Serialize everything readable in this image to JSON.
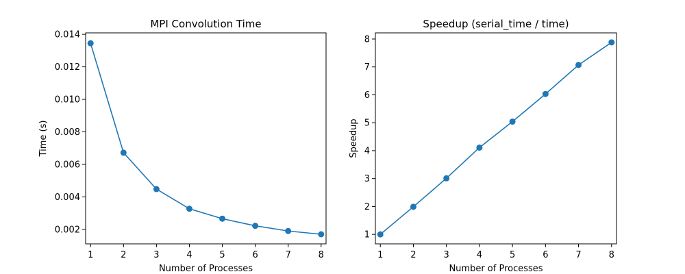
{
  "chart_data": [
    {
      "type": "line",
      "title": "MPI Convolution Time",
      "xlabel": "Number of Processes",
      "ylabel": "Time (s)",
      "x": [
        1,
        2,
        3,
        4,
        5,
        6,
        7,
        8
      ],
      "series": [
        {
          "values": [
            0.01345,
            0.00672,
            0.00448,
            0.00327,
            0.00266,
            0.00222,
            0.0019,
            0.0017
          ]
        }
      ],
      "xlim": [
        0.85,
        8.15
      ],
      "ylim": [
        0.00111,
        0.01409
      ],
      "xticks": [
        1,
        2,
        3,
        4,
        5,
        6,
        7,
        8
      ],
      "yticks": [
        0.002,
        0.004,
        0.006,
        0.008,
        0.01,
        0.012,
        0.014
      ],
      "ytick_labels": [
        "0.002",
        "0.004",
        "0.006",
        "0.008",
        "0.010",
        "0.012",
        "0.014"
      ],
      "grid": false,
      "color": "#1f77b4",
      "marker": "circle"
    },
    {
      "type": "line",
      "title": "Speedup (serial_time / time)",
      "xlabel": "Number of Processes",
      "ylabel": "Speedup",
      "x": [
        1,
        2,
        3,
        4,
        5,
        6,
        7,
        8
      ],
      "series": [
        {
          "values": [
            1.0,
            1.99,
            3.01,
            4.11,
            5.04,
            6.03,
            7.07,
            7.88
          ]
        }
      ],
      "xlim": [
        0.85,
        8.15
      ],
      "ylim": [
        0.66,
        8.22
      ],
      "xticks": [
        1,
        2,
        3,
        4,
        5,
        6,
        7,
        8
      ],
      "yticks": [
        1,
        2,
        3,
        4,
        5,
        6,
        7,
        8
      ],
      "ytick_labels": [
        "1",
        "2",
        "3",
        "4",
        "5",
        "6",
        "7",
        "8"
      ],
      "grid": false,
      "color": "#1f77b4",
      "marker": "circle"
    }
  ]
}
